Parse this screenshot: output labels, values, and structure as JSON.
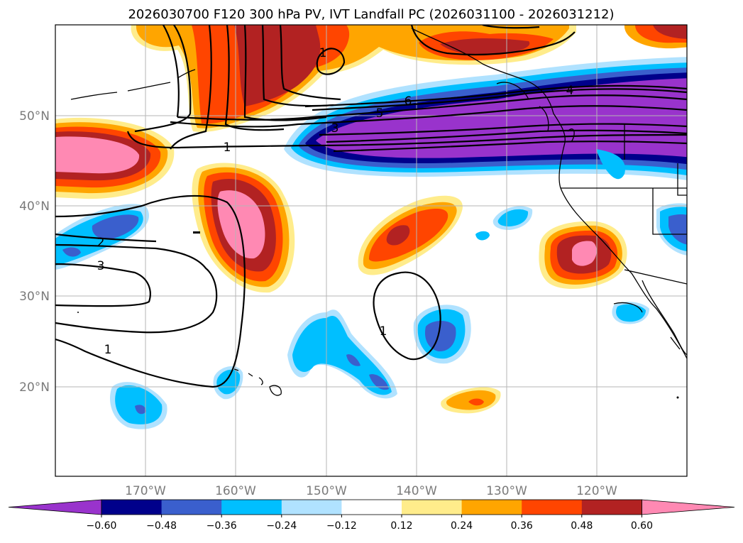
{
  "title": "2026030700 F120 300 hPa PV, IVT Landfall PC (2026031100 - 2026031212)",
  "lon_labels": [
    "170°W",
    "160°W",
    "150°W",
    "140°W",
    "130°W",
    "120°W"
  ],
  "lat_labels": [
    "50°N",
    "40°N",
    "30°N",
    "20°N"
  ],
  "colorbar": {
    "ticks": [
      "−0.60",
      "−0.48",
      "−0.36",
      "−0.24",
      "−0.12",
      "0.12",
      "0.24",
      "0.36",
      "0.48",
      "0.60"
    ],
    "colors": [
      "#9933cc",
      "#00008b",
      "#3a5fcd",
      "#00bfff",
      "#b0e2ff",
      "#ffffff",
      "#ffec8b",
      "#ffa500",
      "#ff4500",
      "#b22222",
      "#ff89b3"
    ]
  },
  "contour_labels": [
    "1",
    "1",
    "1",
    "1",
    "2",
    "3",
    "3",
    "4",
    "5",
    "6"
  ]
}
